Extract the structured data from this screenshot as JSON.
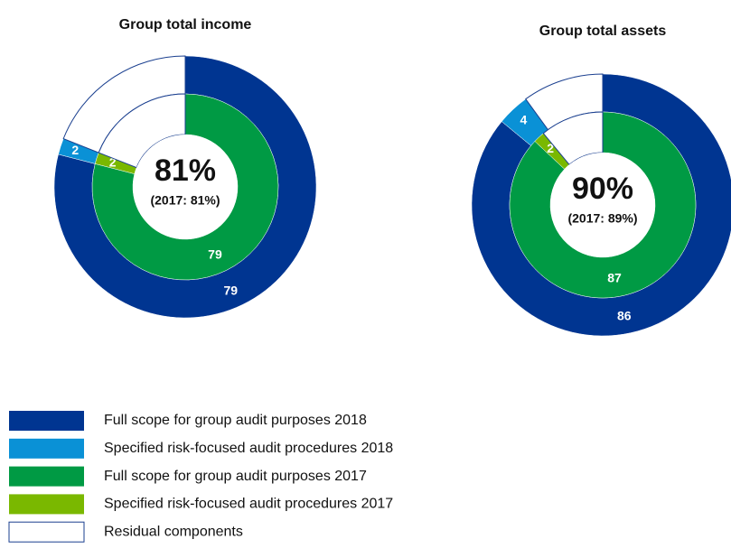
{
  "legend": [
    {
      "name": "Full scope for group audit purposes 2018",
      "color": "#003591"
    },
    {
      "name": "Specified risk-focused audit procedures 2018",
      "color": "#0a91d6"
    },
    {
      "name": "Full scope for group audit purposes 2017",
      "color": "#009a44"
    },
    {
      "name": "Specified risk-focused audit procedures 2017",
      "color": "#7ab800"
    },
    {
      "name": "Residual components",
      "color": "none"
    }
  ],
  "chart_data": [
    {
      "type": "donut",
      "title": "Group total income",
      "center_label": "81%",
      "center_sublabel": "(2017: 81%)",
      "series": [
        {
          "values": [
            79,
            null
          ]
        },
        {
          "values": [
            2,
            null
          ]
        },
        {
          "values": [
            null,
            79
          ]
        },
        {
          "values": [
            null,
            2
          ]
        },
        {
          "values": [
            19,
            19
          ]
        }
      ]
    },
    {
      "type": "donut",
      "title": "Group total assets",
      "center_label": "90%",
      "center_sublabel": "(2017: 89%)",
      "series": [
        {
          "values": [
            86,
            null
          ]
        },
        {
          "values": [
            4,
            null
          ]
        },
        {
          "values": [
            null,
            87
          ]
        },
        {
          "values": [
            null,
            2
          ]
        },
        {
          "values": [
            10,
            11
          ]
        }
      ]
    }
  ]
}
